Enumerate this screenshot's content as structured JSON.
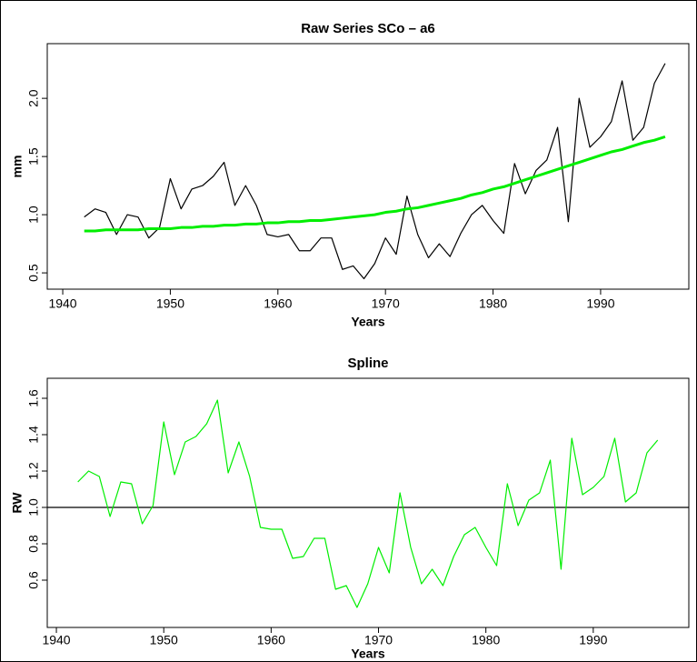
{
  "chart_data": [
    {
      "type": "line",
      "title": "Raw Series  SCo – a6",
      "x_label": "Years",
      "y_label": "mm",
      "x": [
        1942,
        1943,
        1944,
        1945,
        1946,
        1947,
        1948,
        1949,
        1950,
        1951,
        1952,
        1953,
        1954,
        1955,
        1956,
        1957,
        1958,
        1959,
        1960,
        1961,
        1962,
        1963,
        1964,
        1965,
        1966,
        1967,
        1968,
        1969,
        1970,
        1971,
        1972,
        1973,
        1974,
        1975,
        1976,
        1977,
        1978,
        1979,
        1980,
        1981,
        1982,
        1983,
        1984,
        1985,
        1986,
        1987,
        1988,
        1989,
        1990,
        1991,
        1992,
        1993,
        1994,
        1995,
        1996
      ],
      "series": [
        {
          "color": "#000000",
          "width": 1.2,
          "values": [
            0.98,
            1.05,
            1.02,
            0.83,
            1.0,
            0.98,
            0.8,
            0.89,
            1.31,
            1.05,
            1.22,
            1.25,
            1.33,
            1.45,
            1.08,
            1.25,
            1.08,
            0.83,
            0.81,
            0.83,
            0.69,
            0.69,
            0.8,
            0.8,
            0.53,
            0.56,
            0.45,
            0.58,
            0.8,
            0.66,
            1.16,
            0.83,
            0.63,
            0.75,
            0.64,
            0.84,
            1.0,
            1.08,
            0.95,
            0.84,
            1.44,
            1.18,
            1.38,
            1.47,
            1.75,
            0.94,
            2.0,
            1.58,
            1.67,
            1.8,
            2.15,
            1.64,
            1.75,
            2.13,
            2.3
          ]
        },
        {
          "color": "#00ee00",
          "width": 3,
          "values": [
            0.86,
            0.86,
            0.87,
            0.87,
            0.87,
            0.87,
            0.88,
            0.88,
            0.88,
            0.89,
            0.89,
            0.9,
            0.9,
            0.91,
            0.91,
            0.92,
            0.92,
            0.93,
            0.93,
            0.94,
            0.94,
            0.95,
            0.95,
            0.96,
            0.97,
            0.98,
            0.99,
            1.0,
            1.02,
            1.03,
            1.05,
            1.06,
            1.08,
            1.1,
            1.12,
            1.14,
            1.17,
            1.19,
            1.22,
            1.24,
            1.27,
            1.3,
            1.33,
            1.36,
            1.39,
            1.42,
            1.45,
            1.48,
            1.51,
            1.54,
            1.56,
            1.59,
            1.62,
            1.64,
            1.67
          ]
        }
      ],
      "xlim": [
        1938.56,
        1998.2
      ],
      "xticks": [
        1940,
        1950,
        1960,
        1970,
        1980,
        1990
      ],
      "ylim": [
        0.36,
        2.47
      ],
      "yticks": [
        0.5,
        {
          "value": 1,
          "label": "1.0"
        },
        1.5,
        {
          "value": 2,
          "label": "2.0"
        }
      ]
    },
    {
      "type": "line",
      "title": "Spline",
      "x_label": "Years",
      "y_label": "RW",
      "x": [
        1942,
        1943,
        1944,
        1945,
        1946,
        1947,
        1948,
        1949,
        1950,
        1951,
        1952,
        1953,
        1954,
        1955,
        1956,
        1957,
        1958,
        1959,
        1960,
        1961,
        1962,
        1963,
        1964,
        1965,
        1966,
        1967,
        1968,
        1969,
        1970,
        1971,
        1972,
        1973,
        1974,
        1975,
        1976,
        1977,
        1978,
        1979,
        1980,
        1981,
        1982,
        1983,
        1984,
        1985,
        1986,
        1987,
        1988,
        1989,
        1990,
        1991,
        1992,
        1993,
        1994,
        1995,
        1996
      ],
      "series": [
        {
          "color": "#00ee00",
          "width": 1.2,
          "values": [
            1.14,
            1.2,
            1.17,
            0.95,
            1.14,
            1.13,
            0.91,
            1.01,
            1.47,
            1.18,
            1.36,
            1.39,
            1.46,
            1.59,
            1.19,
            1.36,
            1.17,
            0.89,
            0.88,
            0.88,
            0.72,
            0.73,
            0.83,
            0.83,
            0.55,
            0.57,
            0.45,
            0.58,
            0.78,
            0.64,
            1.08,
            0.78,
            0.58,
            0.66,
            0.57,
            0.73,
            0.85,
            0.89,
            0.78,
            0.68,
            1.13,
            0.9,
            1.04,
            1.08,
            1.26,
            0.66,
            1.38,
            1.07,
            1.11,
            1.17,
            1.38,
            1.03,
            1.08,
            1.3,
            1.37
          ]
        }
      ],
      "hline": 1,
      "xlim": [
        1939.15,
        1998.9
      ],
      "xticks": [
        1940,
        1950,
        1960,
        1970,
        1980,
        1990
      ],
      "ylim": [
        0.34,
        1.71
      ],
      "yticks": [
        0.6,
        0.8,
        {
          "value": 1,
          "label": "1.0"
        },
        1.2,
        1.4,
        1.6
      ]
    }
  ]
}
